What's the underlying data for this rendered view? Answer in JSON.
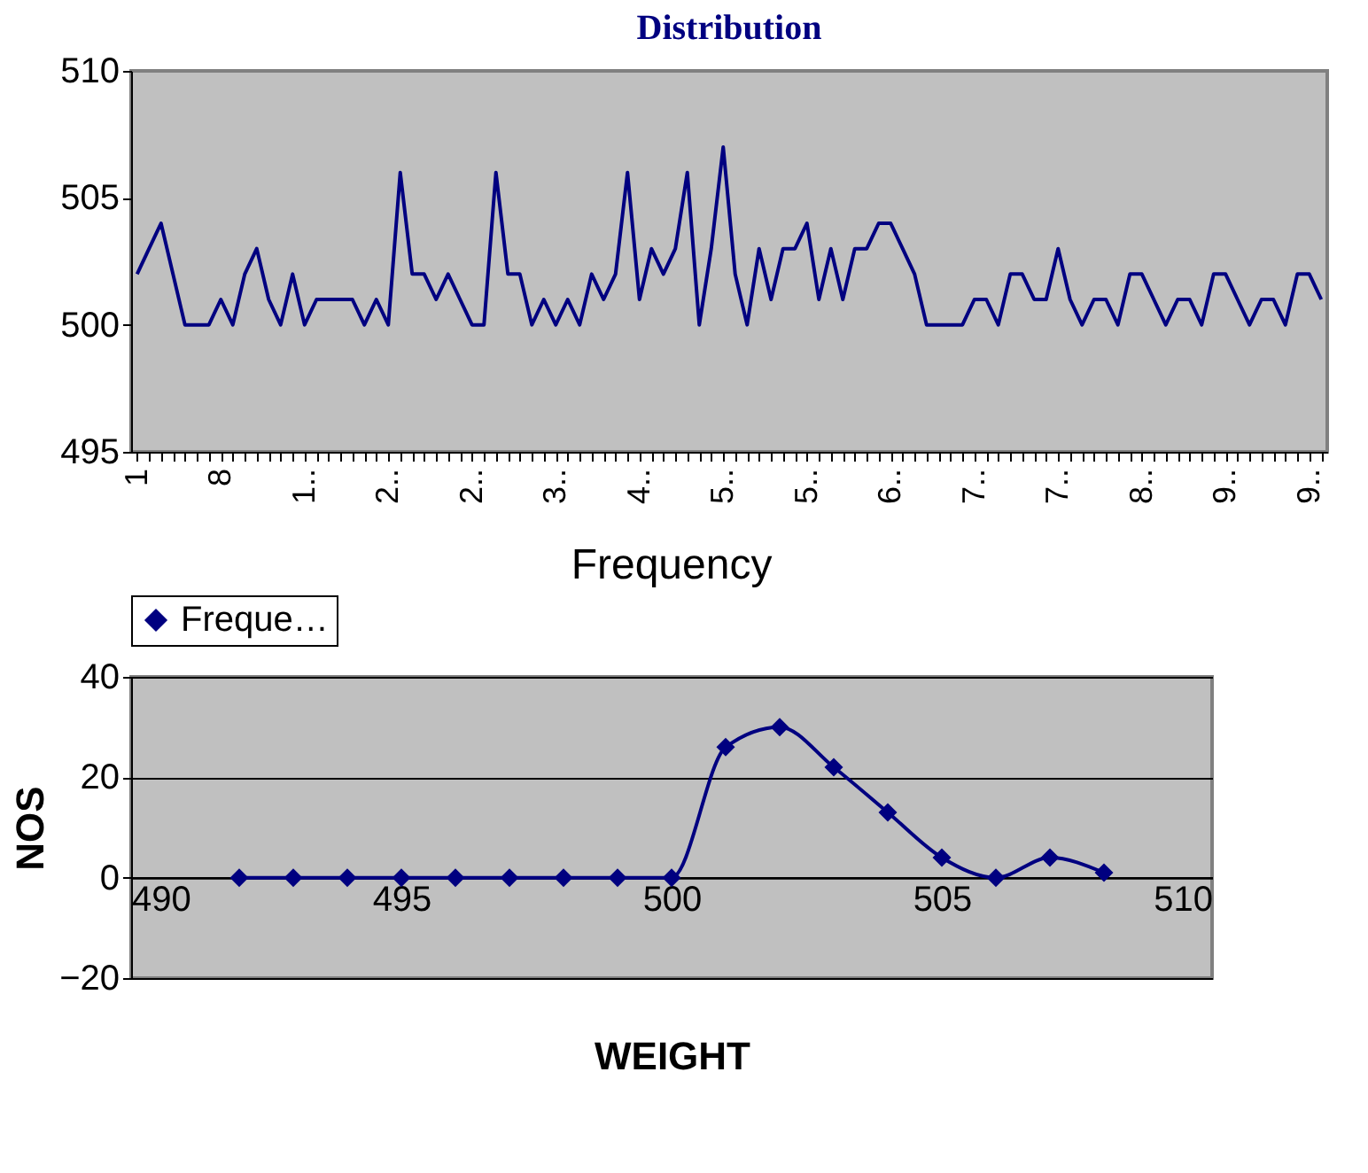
{
  "chart_data": [
    {
      "type": "line",
      "title": "Distribution",
      "categories": [
        "1",
        null,
        null,
        null,
        null,
        null,
        null,
        "8",
        null,
        null,
        null,
        null,
        null,
        null,
        "1..",
        null,
        null,
        null,
        null,
        null,
        null,
        "2..",
        null,
        null,
        null,
        null,
        null,
        null,
        "2..",
        null,
        null,
        null,
        null,
        null,
        null,
        "3..",
        null,
        null,
        null,
        null,
        null,
        null,
        "4..",
        null,
        null,
        null,
        null,
        null,
        null,
        "5..",
        null,
        null,
        null,
        null,
        null,
        null,
        "5..",
        null,
        null,
        null,
        null,
        null,
        null,
        "6..",
        null,
        null,
        null,
        null,
        null,
        null,
        "7..",
        null,
        null,
        null,
        null,
        null,
        null,
        "7..",
        null,
        null,
        null,
        null,
        null,
        null,
        "8..",
        null,
        null,
        null,
        null,
        null,
        null,
        "9..",
        null,
        null,
        null,
        null,
        null,
        null,
        "9..",
        null
      ],
      "series": [
        {
          "color": "#000080",
          "values": [
            502,
            503,
            504,
            502,
            500,
            500,
            500,
            501,
            500,
            502,
            503,
            501,
            500,
            502,
            500,
            501,
            501,
            501,
            501,
            500,
            501,
            500,
            506,
            502,
            502,
            501,
            502,
            501,
            500,
            500,
            506,
            502,
            502,
            500,
            501,
            500,
            501,
            500,
            502,
            501,
            502,
            506,
            501,
            503,
            502,
            503,
            506,
            500,
            503,
            507,
            502,
            500,
            503,
            501,
            503,
            503,
            504,
            501,
            503,
            501,
            503,
            503,
            504,
            504,
            503,
            502,
            500,
            500,
            500,
            500,
            501,
            501,
            500,
            502,
            502,
            501,
            501,
            503,
            501,
            500,
            501,
            501,
            500,
            502,
            502,
            501,
            500,
            501,
            501,
            500,
            502,
            502,
            501,
            500,
            501,
            501,
            500,
            502,
            502,
            501
          ]
        }
      ],
      "ylim": [
        495,
        510
      ],
      "yticks": [
        495,
        500,
        505,
        510
      ],
      "grid": false,
      "legend": false,
      "marker": "none"
    },
    {
      "type": "line",
      "title": "Frequency",
      "xlabel": "WEIGHT",
      "ylabel": "NOS",
      "x": [
        492,
        493,
        494,
        495,
        496,
        497,
        498,
        499,
        500,
        501,
        502,
        503,
        504,
        505,
        506,
        507,
        508
      ],
      "series": [
        {
          "name": "Freque…",
          "color": "#000080",
          "values": [
            0,
            0,
            0,
            0,
            0,
            0,
            0,
            0,
            0,
            26,
            30,
            22,
            13,
            4,
            0,
            4,
            1
          ]
        }
      ],
      "xlim": [
        490,
        510
      ],
      "xticks": [
        490,
        495,
        500,
        505,
        510
      ],
      "ylim": [
        -20,
        40
      ],
      "yticks": [
        -20,
        0,
        20,
        40
      ],
      "grid": "y",
      "legend": "top",
      "marker": "diamond"
    }
  ]
}
